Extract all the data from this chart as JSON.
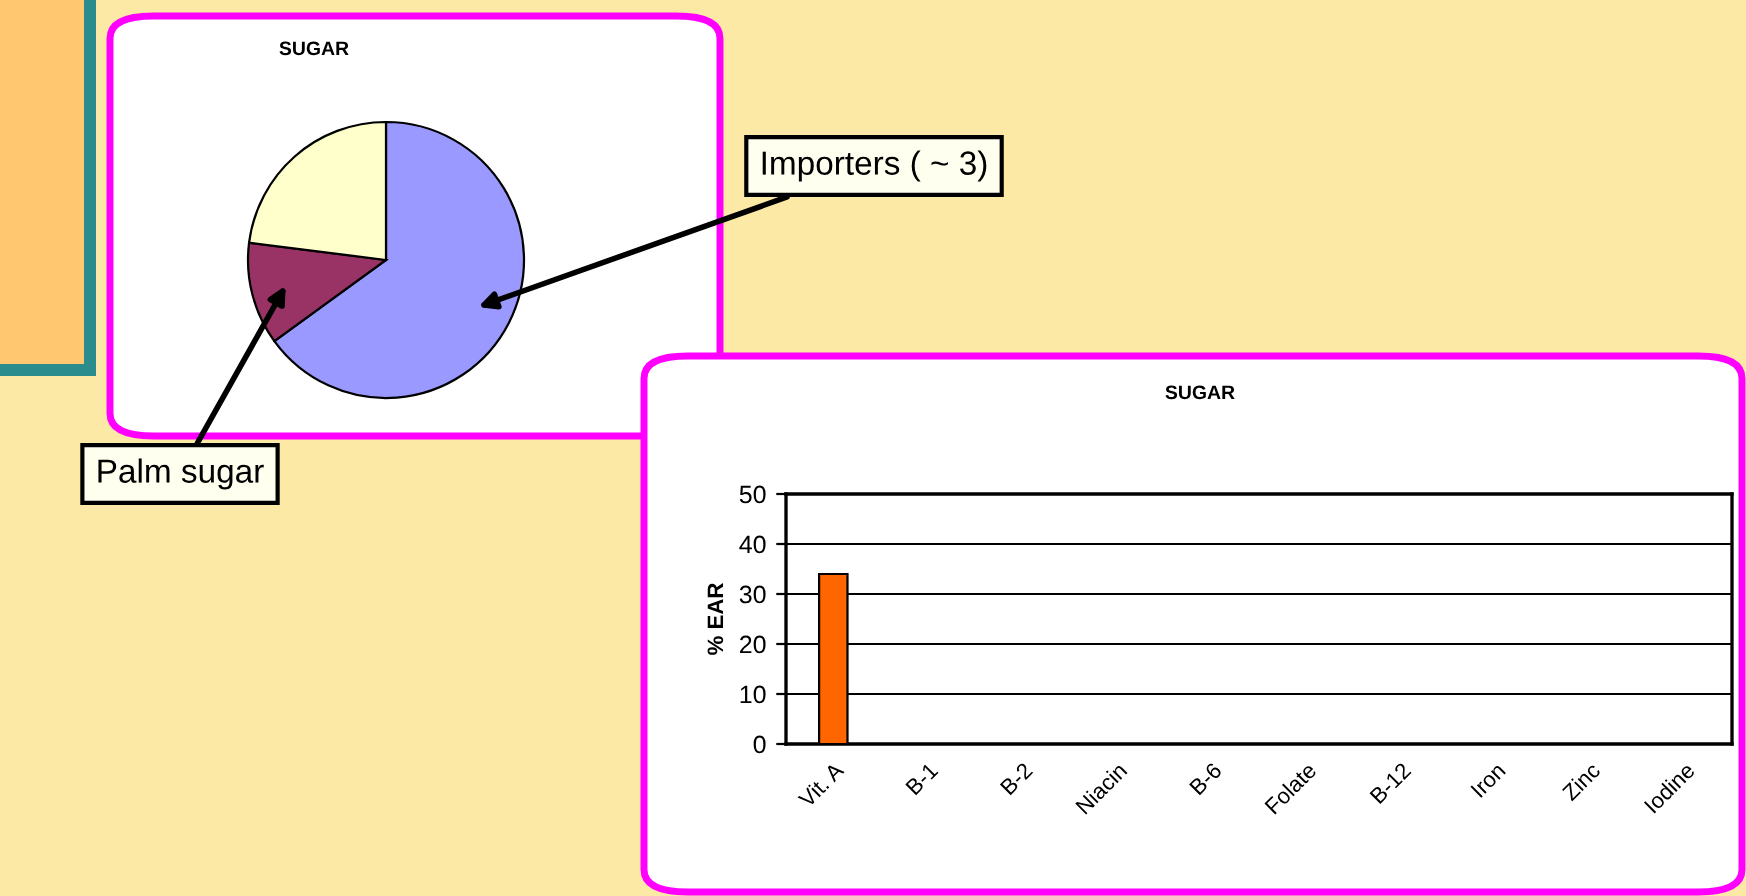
{
  "chart_data": [
    {
      "type": "pie",
      "title": "SUGAR",
      "categories": [
        "Importers ( ~ 3)",
        "Palm sugar",
        null
      ],
      "values": [
        65,
        12,
        23
      ],
      "colors": [
        "#9999ff",
        "#993366",
        "#ffffcc"
      ]
    },
    {
      "type": "bar",
      "title": "SUGAR",
      "ylabel": "% EAR",
      "categories": [
        "Vit. A",
        "B-1",
        "B-2",
        "Niacin",
        "B-6",
        "Folate",
        "B-12",
        "Iron",
        "Zinc",
        "Iodine"
      ],
      "values": [
        34,
        null,
        null,
        null,
        null,
        null,
        null,
        null,
        null,
        null
      ],
      "color": "#ff6600",
      "ylim": [
        0,
        50
      ],
      "yticks": [
        0,
        10,
        20,
        30,
        40,
        50
      ],
      "grid": "y"
    }
  ]
}
